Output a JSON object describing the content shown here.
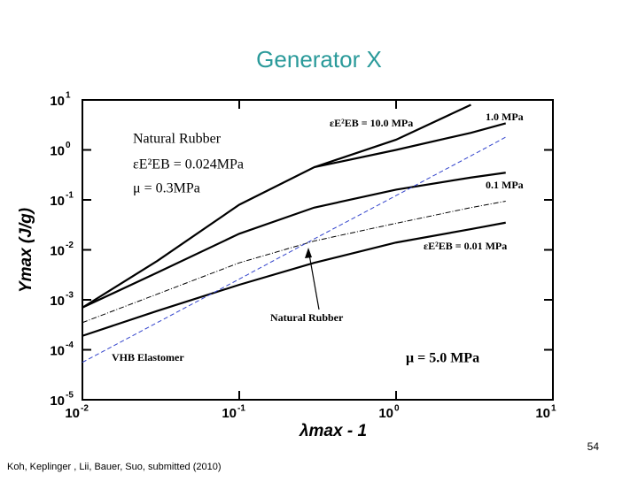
{
  "slide": {
    "title": "Generator X",
    "page_number": "54",
    "citation": "Koh, Keplinger , Lii, Bauer, Suo, submitted (2010)"
  },
  "chart_data": {
    "type": "line",
    "log_x": true,
    "log_y": true,
    "x_label": "λmax - 1",
    "y_label": "Ymax (J/g)",
    "xlim": [
      0.01,
      10
    ],
    "ylim": [
      1e-05,
      10
    ],
    "xticks": [
      {
        "value": 0.01,
        "label": "10",
        "exponent": "-2"
      },
      {
        "value": 0.1,
        "label": "10",
        "exponent": "-1"
      },
      {
        "value": 1,
        "label": "10",
        "exponent": "0"
      },
      {
        "value": 10,
        "label": "10",
        "exponent": "1"
      }
    ],
    "yticks": [
      {
        "value": 1e-05,
        "label": "10",
        "exponent": "-5"
      },
      {
        "value": 0.0001,
        "label": "10",
        "exponent": "-4"
      },
      {
        "value": 0.001,
        "label": "10",
        "exponent": "-3"
      },
      {
        "value": 0.01,
        "label": "10",
        "exponent": "-2"
      },
      {
        "value": 0.1,
        "label": "10",
        "exponent": "-1"
      },
      {
        "value": 1,
        "label": "10",
        "exponent": "0"
      },
      {
        "value": 10,
        "label": "10",
        "exponent": "1"
      }
    ],
    "x": [
      0.01,
      0.03,
      0.1,
      0.3,
      1,
      3,
      5
    ],
    "series": [
      {
        "name": "εE²EB = 10.0 MPa",
        "color": "#000000",
        "width": 2.2,
        "values": [
          0.0007,
          0.006,
          0.08,
          0.45,
          1.6,
          8,
          null
        ]
      },
      {
        "name": "1.0 MPa",
        "color": "#000000",
        "width": 2.2,
        "values": [
          null,
          null,
          null,
          0.45,
          1.0,
          2.2,
          3.4
        ]
      },
      {
        "name": "0.1 MPa",
        "color": "#000000",
        "width": 2.2,
        "values": [
          0.0007,
          0.0035,
          0.021,
          0.07,
          0.16,
          0.28,
          0.35
        ]
      },
      {
        "name": "εE²EB = 0.01 MPa",
        "color": "#000000",
        "width": 2.2,
        "values": [
          0.00019,
          0.0006,
          0.002,
          0.0055,
          0.014,
          0.026,
          0.035
        ]
      },
      {
        "name": "Natural Rubber",
        "color": "#000000",
        "width": 1,
        "dash": "6 2 1 2",
        "values": [
          0.00035,
          0.0013,
          0.0055,
          0.015,
          0.034,
          0.07,
          0.094
        ]
      },
      {
        "name": "VHB Elastomer",
        "color": "#3344cc",
        "width": 1,
        "dash": "5 3",
        "values": [
          5.6e-05,
          0.00035,
          0.0026,
          0.0165,
          0.122,
          0.76,
          1.8
        ]
      }
    ],
    "annotations": [
      "Natural Rubber",
      "εE²EB = 0.024MPa",
      "μ = 0.3MPa",
      "μ = 5.0 MPa"
    ]
  }
}
